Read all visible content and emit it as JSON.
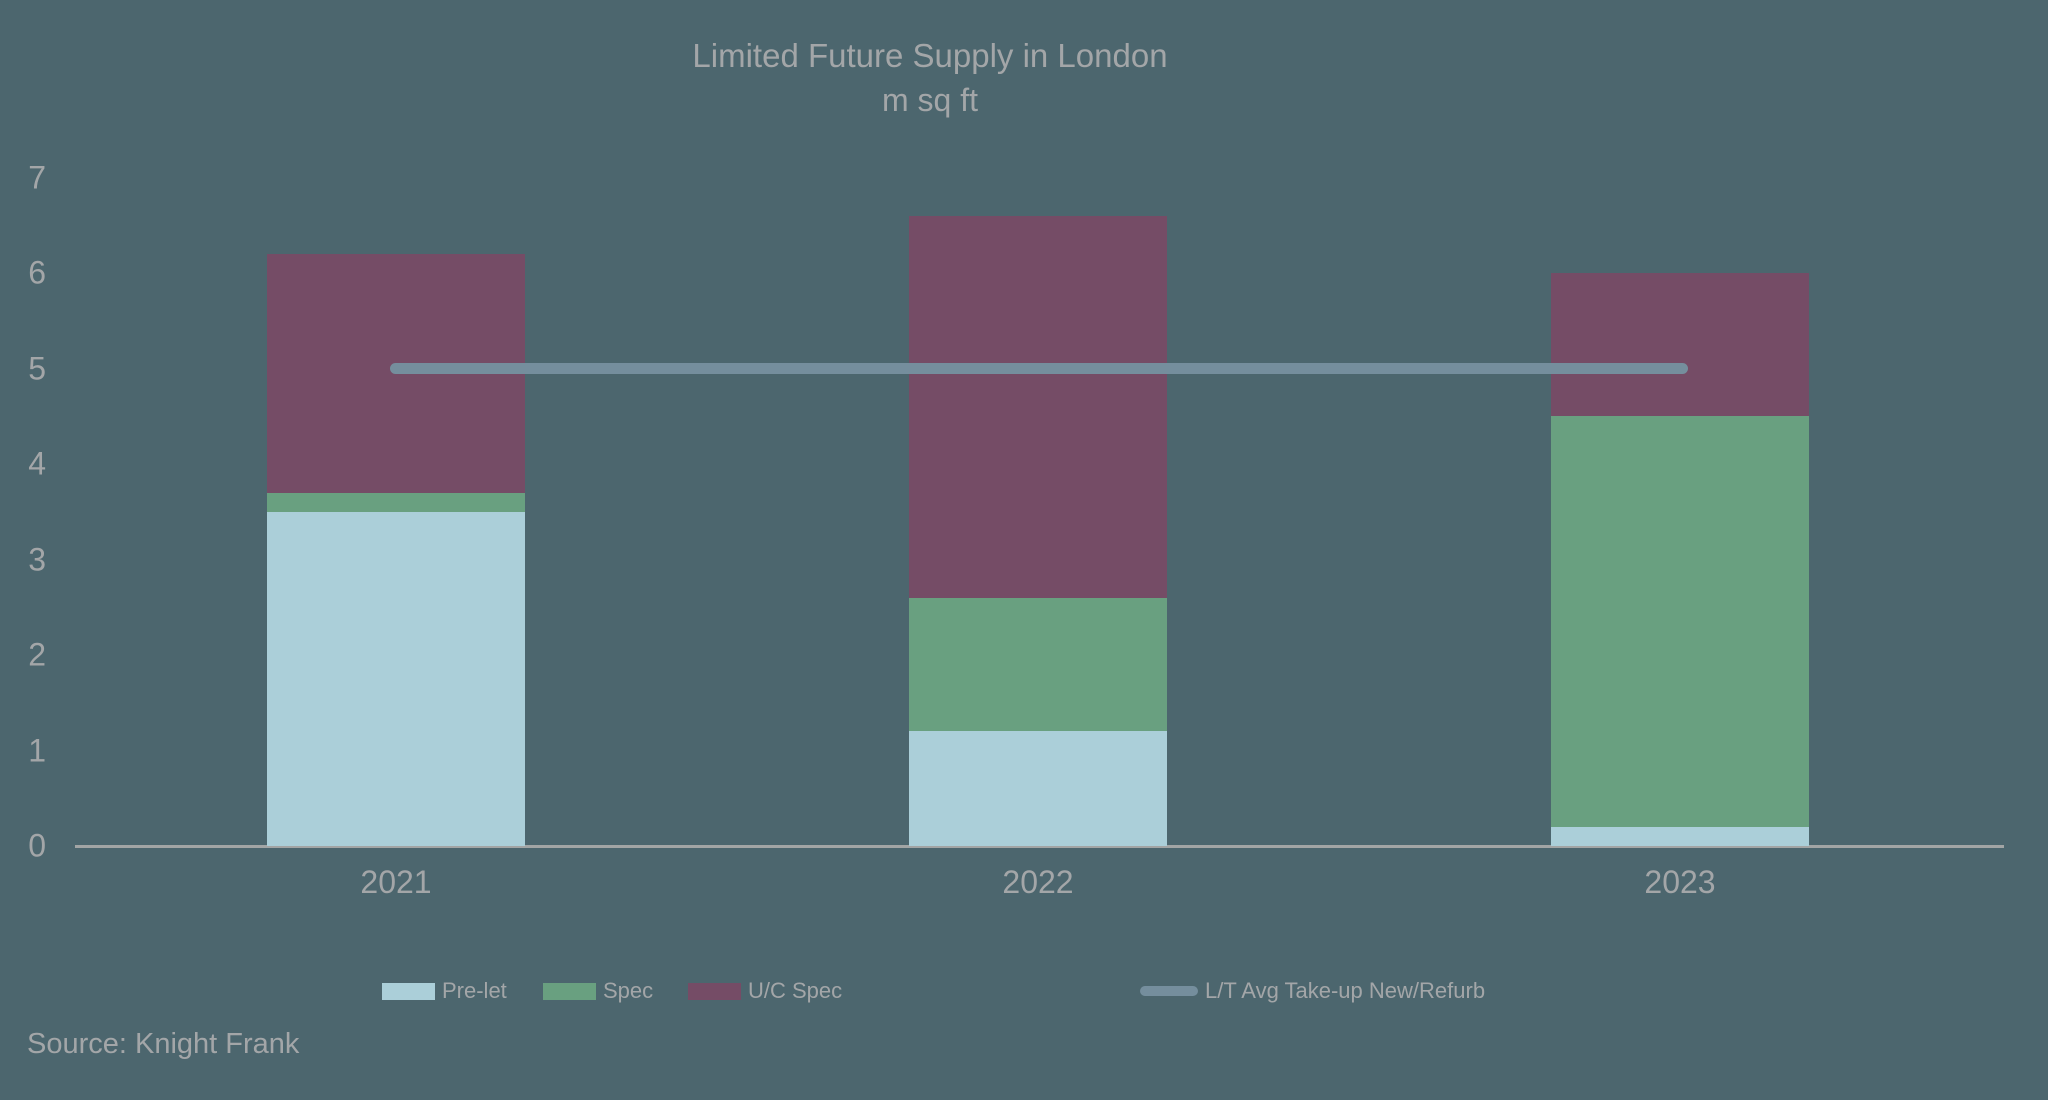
{
  "source": "Source: Knight Frank",
  "colors": {
    "background": "#4C666E",
    "pre_let": "#ABCFD9",
    "spec": "#69A080",
    "uc_spec": "#754C66",
    "trend_line": "#758E9D",
    "text": "#A3A6A8",
    "axis_line": "#A2A5A5"
  },
  "chart_data": {
    "type": "bar",
    "stacked": true,
    "title": "Limited Future Supply in London",
    "subtitle": "m sq ft",
    "xlabel": "",
    "ylabel": "",
    "categories": [
      "2021",
      "2022",
      "2023"
    ],
    "series": [
      {
        "name": "Pre-let",
        "type": "bar",
        "values": [
          3.5,
          1.2,
          0.2
        ],
        "color": "#ABCFD9"
      },
      {
        "name": "Spec",
        "type": "bar",
        "values": [
          0.2,
          1.4,
          4.3
        ],
        "color": "#69A080"
      },
      {
        "name": "U/C Spec",
        "type": "bar",
        "values": [
          2.5,
          4.0,
          1.5
        ],
        "color": "#754C66"
      },
      {
        "name": "L/T Avg Take-up New/Refurb",
        "type": "line",
        "values": [
          5,
          5,
          5
        ],
        "color": "#758E9D"
      }
    ],
    "ylim": [
      0,
      7
    ],
    "y_ticks": [
      0,
      1,
      2,
      3,
      4,
      5,
      6,
      7
    ],
    "grid": false,
    "legend_position": "bottom"
  },
  "legend": {
    "items": [
      {
        "label": "Pre-let",
        "swatch": "bar",
        "color": "#ABCFD9"
      },
      {
        "label": "Spec",
        "swatch": "bar",
        "color": "#69A080"
      },
      {
        "label": "U/C Spec",
        "swatch": "bar",
        "color": "#754C66"
      },
      {
        "label": "L/T Avg Take-up New/Refurb",
        "swatch": "line",
        "color": "#758E9D"
      }
    ]
  }
}
